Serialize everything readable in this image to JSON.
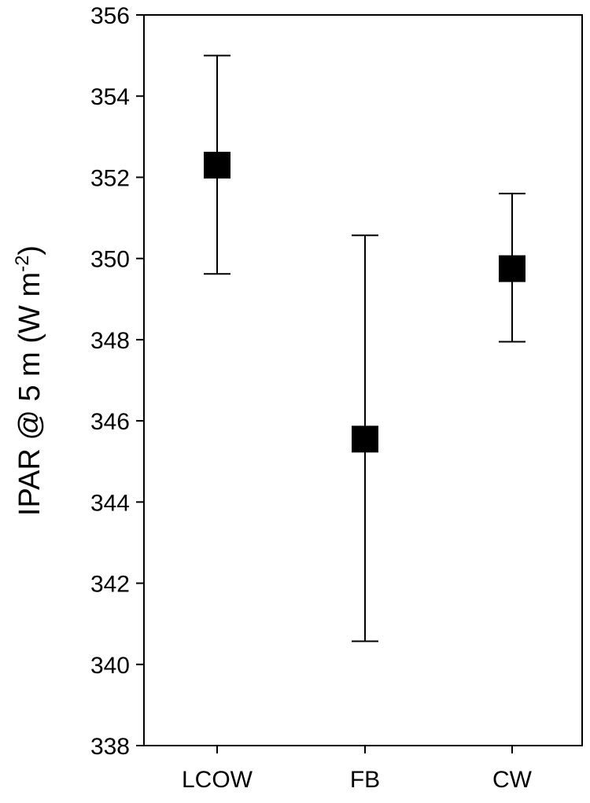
{
  "chart_data": {
    "type": "scatter",
    "categories": [
      "LCOW",
      "FB",
      "CW"
    ],
    "series": [
      {
        "values": [
          352.3,
          345.55,
          349.75
        ],
        "error_low": [
          349.62,
          340.57,
          347.95
        ],
        "error_high": [
          355.0,
          350.57,
          351.6
        ],
        "marker": "square",
        "color": "#000000"
      }
    ],
    "ylabel": {
      "main": "IPAR @ 5 m (W m",
      "superscript": "-2",
      "close": ")"
    },
    "xlabel": "",
    "title": "",
    "ylim": [
      338,
      356
    ],
    "yticks": [
      338,
      340,
      342,
      344,
      346,
      348,
      350,
      352,
      354,
      356
    ],
    "grid": false,
    "legend": "none"
  }
}
